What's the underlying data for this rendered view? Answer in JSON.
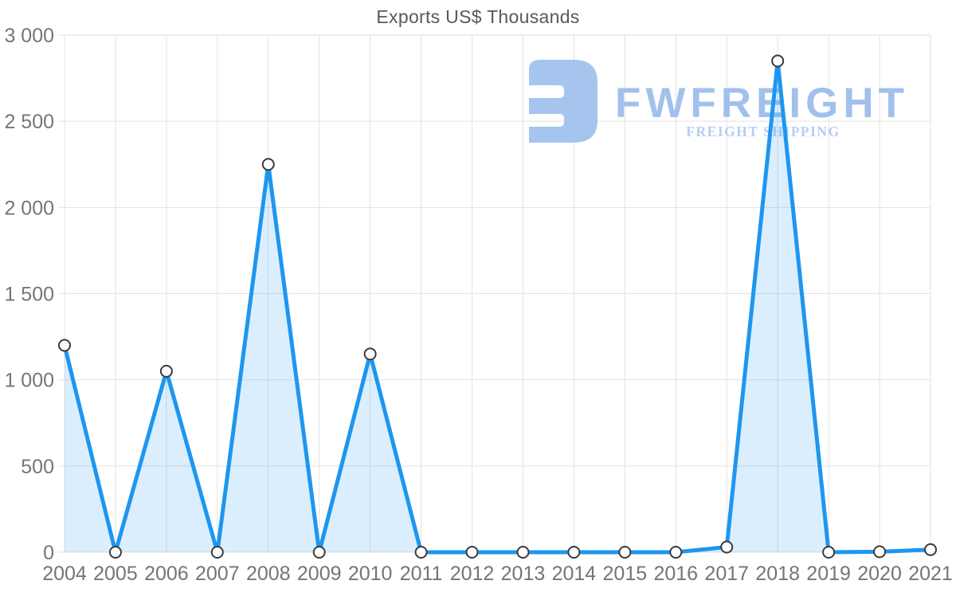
{
  "title": "Exports US$ Thousands",
  "watermark": {
    "brand": "FWFREIGHT",
    "tagline": "FREIGHT SHIPPING",
    "icon": "fwfreight-logo-icon",
    "icon_color": "#a2c2ee",
    "brand_color": "#9cbeec",
    "tagline_color": "#b1cdf3"
  },
  "colors": {
    "line": "#1e96f0",
    "area_fill": "rgba(30,150,240,0.16)",
    "marker_fill": "#ffffff",
    "marker_stroke": "#3a3a3a",
    "grid": "#e2e2e2",
    "axis_text": "#757575",
    "title_text": "#595959",
    "background": "#ffffff"
  },
  "chart_data": {
    "type": "area",
    "title": "Exports US$ Thousands",
    "xlabel": "",
    "ylabel": "",
    "categories": [
      "2004",
      "2005",
      "2006",
      "2007",
      "2008",
      "2009",
      "2010",
      "2011",
      "2012",
      "2013",
      "2014",
      "2015",
      "2016",
      "2017",
      "2018",
      "2019",
      "2020",
      "2021"
    ],
    "values": [
      1200,
      0,
      1050,
      0,
      2250,
      0,
      1150,
      0,
      0,
      0,
      0,
      0,
      0,
      30,
      2850,
      0,
      3,
      15
    ],
    "ylim": [
      0,
      3000
    ],
    "y_ticks": [
      0,
      500,
      1000,
      1500,
      2000,
      2500,
      3000
    ],
    "y_tick_labels": [
      "0",
      "500",
      "1 000",
      "1 500",
      "2 000",
      "2 500",
      "3 000"
    ],
    "grid": true,
    "legend": "none",
    "marker": "circle",
    "series_name": "Exports"
  }
}
